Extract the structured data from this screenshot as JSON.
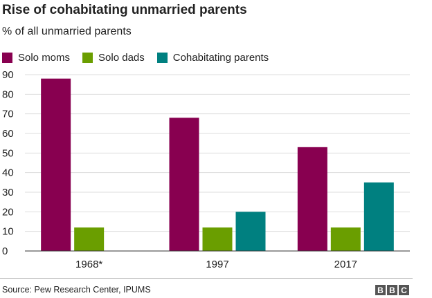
{
  "chart_data": {
    "type": "bar",
    "title": "Rise of cohabitating unmarried parents",
    "subtitle": "% of all unmarried parents",
    "categories": [
      "1968*",
      "1997",
      "2017"
    ],
    "series": [
      {
        "name": "Solo moms",
        "color": "#880050",
        "values": [
          88,
          68,
          53
        ]
      },
      {
        "name": "Solo dads",
        "color": "#6a9e00",
        "values": [
          12,
          12,
          12
        ]
      },
      {
        "name": "Cohabitating parents",
        "color": "#008080",
        "values": [
          null,
          20,
          35
        ]
      }
    ],
    "yticks": [
      0,
      10,
      20,
      30,
      40,
      50,
      60,
      70,
      80,
      90
    ],
    "ylim": [
      0,
      90
    ],
    "grid": true,
    "legend_position": "top-left"
  },
  "footer": {
    "source": "Source: Pew Research Center, IPUMS",
    "logo_letters": [
      "B",
      "B",
      "C"
    ]
  }
}
